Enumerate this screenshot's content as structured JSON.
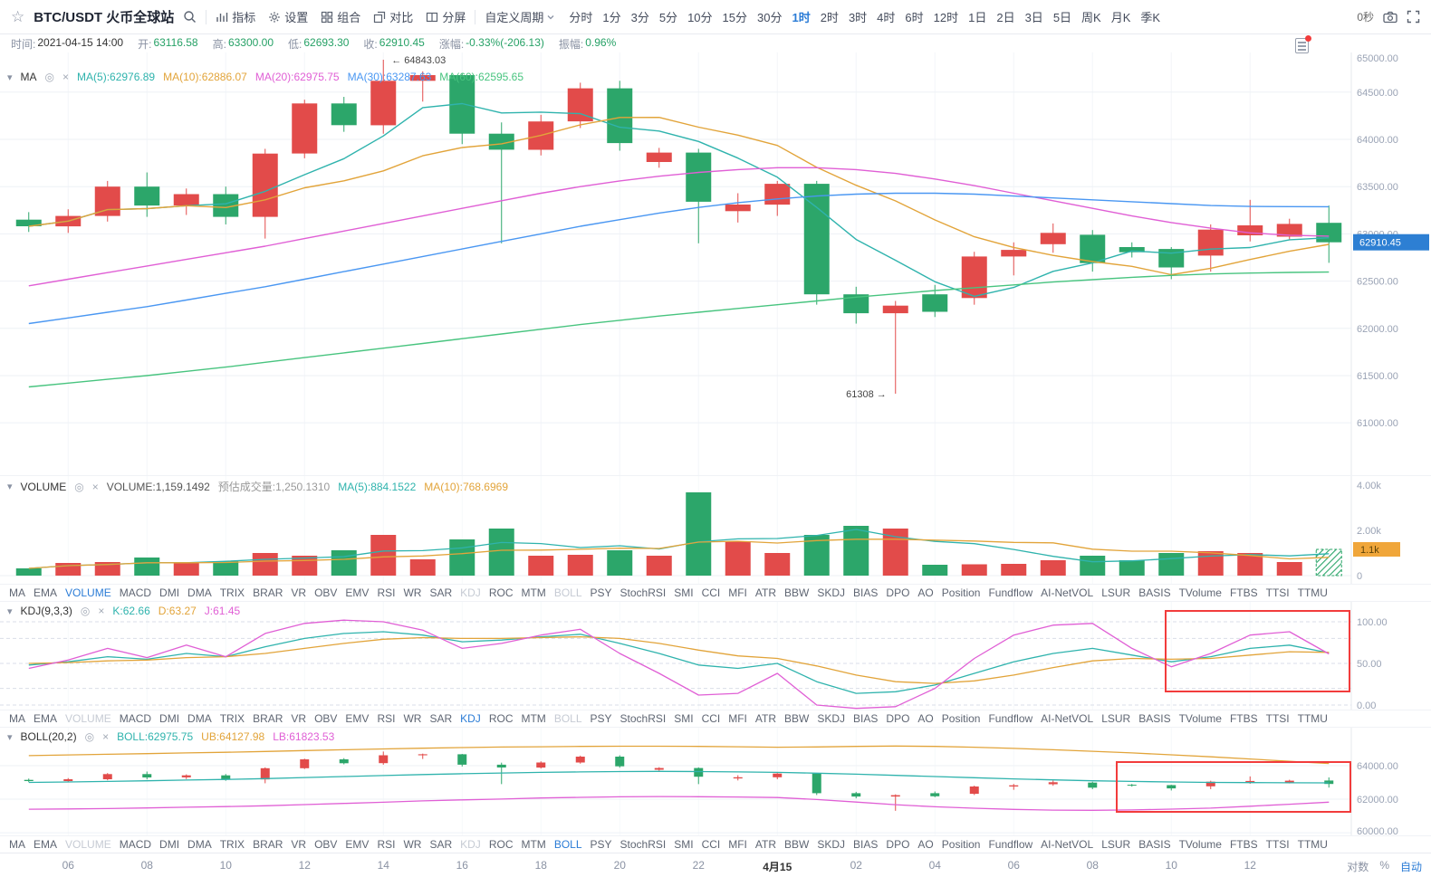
{
  "toolbar": {
    "symbol": "BTC/USDT 火币全球站",
    "tools": [
      {
        "label": "指标",
        "icon": "indicator-icon"
      },
      {
        "label": "设置",
        "icon": "gear-icon"
      },
      {
        "label": "组合",
        "icon": "layout-icon"
      },
      {
        "label": "对比",
        "icon": "compare-icon"
      },
      {
        "label": "分屏",
        "icon": "split-icon"
      }
    ],
    "custom_period_label": "自定义周期",
    "timeframes": [
      "分时",
      "1分",
      "3分",
      "5分",
      "10分",
      "15分",
      "30分",
      "1时",
      "2时",
      "3时",
      "4时",
      "6时",
      "12时",
      "1日",
      "2日",
      "3日",
      "5日",
      "周K",
      "月K",
      "季K"
    ],
    "active_timeframe": "1时",
    "countdown": "0秒"
  },
  "info_bar": {
    "fields": [
      {
        "label": "时间:",
        "value": "2021-04-15 14:00",
        "color": "#333333"
      },
      {
        "label": "开:",
        "value": "63116.58",
        "color": "#26a166"
      },
      {
        "label": "高:",
        "value": "63300.00",
        "color": "#26a166"
      },
      {
        "label": "低:",
        "value": "62693.30",
        "color": "#26a166"
      },
      {
        "label": "收:",
        "value": "62910.45",
        "color": "#26a166"
      },
      {
        "label": "涨幅:",
        "value": "-0.33%(-206.13)",
        "color": "#26a166"
      },
      {
        "label": "振幅:",
        "value": "0.96%",
        "color": "#26a166"
      }
    ]
  },
  "legends": {
    "ma": {
      "name": "MA",
      "items": [
        {
          "text": "MA(5):62976.89",
          "color": "#2fb3ad"
        },
        {
          "text": "MA(10):62886.07",
          "color": "#e2a43a"
        },
        {
          "text": "MA(20):62975.75",
          "color": "#e05fd5"
        },
        {
          "text": "MA(30):63287.63",
          "color": "#4a97f2"
        },
        {
          "text": "MA(60):62595.65",
          "color": "#48c47f"
        }
      ]
    },
    "volume": {
      "name": "VOLUME",
      "items": [
        {
          "text": "VOLUME:1,159.1492",
          "color": "#555555"
        },
        {
          "text": "预估成交量:1,250.1310",
          "color": "#999999"
        },
        {
          "text": "MA(5):884.1522",
          "color": "#2fb3ad"
        },
        {
          "text": "MA(10):768.6969",
          "color": "#e2a43a"
        }
      ]
    },
    "kdj": {
      "name": "KDJ(9,3,3)",
      "items": [
        {
          "text": "K:62.66",
          "color": "#2fb3ad"
        },
        {
          "text": "D:63.27",
          "color": "#e2a43a"
        },
        {
          "text": "J:61.45",
          "color": "#e05fd5"
        }
      ]
    },
    "boll": {
      "name": "BOLL(20,2)",
      "items": [
        {
          "text": "BOLL:62975.75",
          "color": "#2fb3ad"
        },
        {
          "text": "UB:64127.98",
          "color": "#e2a43a"
        },
        {
          "text": "LB:61823.53",
          "color": "#e05fd5"
        }
      ]
    }
  },
  "indicator_tabs": {
    "items": [
      "MA",
      "EMA",
      "VOLUME",
      "MACD",
      "DMI",
      "DMA",
      "TRIX",
      "BRAR",
      "VR",
      "OBV",
      "EMV",
      "RSI",
      "WR",
      "SAR",
      "KDJ",
      "ROC",
      "MTM",
      "BOLL",
      "PSY",
      "StochRSI",
      "SMI",
      "CCI",
      "MFI",
      "ATR",
      "BBW",
      "SKDJ",
      "BIAS",
      "DPO",
      "AO",
      "Position",
      "Fundflow",
      "AI-NetVOL",
      "LSUR",
      "BASIS",
      "TVolume",
      "FTBS",
      "TTSI",
      "TTMU"
    ],
    "rows": [
      {
        "active": "VOLUME",
        "dimmed": [
          "KDJ",
          "BOLL"
        ]
      },
      {
        "active": "KDJ",
        "dimmed": [
          "VOLUME",
          "BOLL"
        ]
      },
      {
        "active": "BOLL",
        "dimmed": [
          "VOLUME",
          "KDJ"
        ]
      }
    ]
  },
  "time_axis": {
    "labels": [
      {
        "text": "06",
        "index": 1
      },
      {
        "text": "08",
        "index": 3
      },
      {
        "text": "10",
        "index": 5
      },
      {
        "text": "12",
        "index": 7
      },
      {
        "text": "14",
        "index": 9
      },
      {
        "text": "16",
        "index": 11
      },
      {
        "text": "18",
        "index": 13
      },
      {
        "text": "20",
        "index": 15
      },
      {
        "text": "22",
        "index": 17
      },
      {
        "text": "4月15",
        "index": 19,
        "bold": true
      },
      {
        "text": "02",
        "index": 21
      },
      {
        "text": "04",
        "index": 23
      },
      {
        "text": "06",
        "index": 25
      },
      {
        "text": "08",
        "index": 27
      },
      {
        "text": "10",
        "index": 29
      },
      {
        "text": "12",
        "index": 31
      }
    ],
    "right_options": [
      {
        "text": "对数",
        "active": false
      },
      {
        "text": "%",
        "active": false
      },
      {
        "text": "自动",
        "active": true
      }
    ]
  },
  "axes": {
    "price_ticks": [
      65000,
      64500,
      64000,
      63500,
      63000,
      62500,
      62000,
      61500,
      61000
    ],
    "price_tag": {
      "text": "62910.45",
      "color": "#2d7fd3"
    },
    "volume_ticks": [
      {
        "label": "4.00k",
        "value": 4000
      },
      {
        "label": "2.00k",
        "value": 2000
      },
      {
        "label": "0",
        "value": 0
      }
    ],
    "volume_tag": {
      "text": "1.1k",
      "color": "#f0a63a"
    },
    "kdj_ticks": [
      {
        "label": "100.00",
        "value": 100
      },
      {
        "label": "50.00",
        "value": 50
      },
      {
        "label": "0.00",
        "value": 0
      }
    ],
    "boll_ticks": [
      {
        "label": "64000.00",
        "value": 64000
      },
      {
        "label": "62000.00",
        "value": 62000
      },
      {
        "label": "60000.00",
        "value": 60000
      }
    ]
  },
  "annotations": {
    "high_label": "← 64843.03",
    "low_label": "61308 →",
    "high_value": 64843.03,
    "low_value": 61308
  },
  "colors": {
    "up": "#e24b4a",
    "down": "#2ca66a",
    "ma5": "#2fb3ad",
    "ma10": "#e2a43a",
    "ma20": "#e05fd5",
    "ma30": "#4a97f2",
    "ma60": "#48c47f",
    "accent": "#2b7cd6",
    "grid": "#eef1f6",
    "axis_text": "#9aa3b5",
    "highlight": "#f23c3c"
  },
  "chart_data": {
    "type": "candlestick",
    "interval": "1h",
    "start_time": "2021-04-14 05:00",
    "end_time": "2021-04-15 14:00",
    "price_range": [
      61000,
      65000
    ],
    "candles": [
      [
        63150,
        63230,
        63020,
        63080
      ],
      [
        63080,
        63260,
        63010,
        63190
      ],
      [
        63190,
        63560,
        63130,
        63500
      ],
      [
        63500,
        63650,
        63180,
        63300
      ],
      [
        63300,
        63480,
        63200,
        63420
      ],
      [
        63420,
        63500,
        63100,
        63180
      ],
      [
        63180,
        63900,
        62950,
        63850
      ],
      [
        63850,
        64420,
        63800,
        64380
      ],
      [
        64380,
        64450,
        64080,
        64150
      ],
      [
        64150,
        64843.03,
        64060,
        64620
      ],
      [
        64620,
        64720,
        64400,
        64680
      ],
      [
        64680,
        64700,
        63950,
        64060
      ],
      [
        64060,
        64180,
        62900,
        63890
      ],
      [
        63890,
        64260,
        63830,
        64190
      ],
      [
        64190,
        64600,
        64120,
        64540
      ],
      [
        64540,
        64620,
        63880,
        63960
      ],
      [
        63760,
        63910,
        63700,
        63860
      ],
      [
        63860,
        63900,
        62900,
        63340
      ],
      [
        63240,
        63430,
        63120,
        63310
      ],
      [
        63310,
        63560,
        63190,
        63530
      ],
      [
        63530,
        63560,
        62250,
        62360
      ],
      [
        62360,
        62440,
        62050,
        62160
      ],
      [
        62160,
        62290,
        61308,
        62240
      ],
      [
        62360,
        62460,
        62120,
        62175
      ],
      [
        62320,
        62810,
        62250,
        62760
      ],
      [
        62760,
        62910,
        62560,
        62830
      ],
      [
        62890,
        63110,
        62800,
        63010
      ],
      [
        62990,
        63040,
        62600,
        62690
      ],
      [
        62860,
        62910,
        62750,
        62805
      ],
      [
        62840,
        62860,
        62520,
        62645
      ],
      [
        62770,
        63100,
        62600,
        63045
      ],
      [
        62985,
        63360,
        62920,
        63090
      ],
      [
        62970,
        63160,
        62940,
        63105
      ],
      [
        63116.58,
        63300,
        62693.3,
        62910.45
      ]
    ],
    "volumes": [
      320,
      560,
      600,
      800,
      560,
      640,
      1000,
      880,
      1120,
      1800,
      720,
      1600,
      2080,
      880,
      920,
      1120,
      880,
      3680,
      1520,
      1000,
      1800,
      2200,
      2080,
      480,
      500,
      520,
      680,
      880,
      680,
      1000,
      1080,
      1000,
      600,
      1159.1492
    ],
    "ma20": [
      62450,
      62520,
      62590,
      62660,
      62730,
      62800,
      62870,
      62950,
      63030,
      63110,
      63190,
      63270,
      63350,
      63430,
      63500,
      63560,
      63610,
      63650,
      63680,
      63700,
      63700,
      63680,
      63640,
      63580,
      63510,
      63430,
      63350,
      63270,
      63190,
      63120,
      63060,
      63010,
      62985,
      62975.75
    ],
    "ma30": [
      62050,
      62110,
      62170,
      62230,
      62300,
      62370,
      62440,
      62520,
      62600,
      62680,
      62760,
      62840,
      62920,
      63000,
      63080,
      63150,
      63220,
      63280,
      63330,
      63370,
      63400,
      63420,
      63430,
      63430,
      63420,
      63400,
      63380,
      63360,
      63340,
      63320,
      63300,
      63290,
      63288,
      63287.63
    ],
    "ma60": [
      61380,
      61420,
      61460,
      61500,
      61545,
      61590,
      61640,
      61690,
      61740,
      61790,
      61840,
      61890,
      61940,
      61990,
      62040,
      62085,
      62130,
      62170,
      62210,
      62250,
      62290,
      62330,
      62365,
      62400,
      62430,
      62460,
      62490,
      62515,
      62540,
      62560,
      62575,
      62585,
      62592,
      62595.65
    ],
    "kdj": {
      "k": [
        48,
        52,
        58,
        55,
        62,
        58,
        70,
        80,
        86,
        88,
        84,
        76,
        78,
        82,
        85,
        74,
        62,
        48,
        44,
        50,
        28,
        14,
        16,
        24,
        38,
        52,
        62,
        68,
        60,
        52,
        58,
        68,
        72,
        62.66
      ],
      "d": [
        50,
        51,
        53,
        54,
        57,
        58,
        62,
        68,
        74,
        79,
        81,
        80,
        80,
        81,
        82,
        80,
        74,
        66,
        59,
        56,
        47,
        36,
        28,
        26,
        29,
        36,
        45,
        53,
        56,
        55,
        56,
        60,
        64,
        63.27
      ],
      "j": [
        44,
        54,
        68,
        57,
        72,
        58,
        86,
        98,
        102,
        100,
        90,
        68,
        74,
        84,
        91,
        62,
        38,
        12,
        14,
        38,
        0,
        -4,
        -2,
        20,
        56,
        84,
        96,
        98,
        68,
        46,
        62,
        84,
        88,
        61.45
      ]
    },
    "boll": {
      "ub": [
        64600,
        64640,
        64680,
        64720,
        64760,
        64800,
        64850,
        64900,
        64950,
        65000,
        65040,
        65080,
        65110,
        65130,
        65150,
        65160,
        65160,
        65150,
        65130,
        65100,
        65120,
        65150,
        65170,
        65150,
        65100,
        65030,
        64950,
        64860,
        64760,
        64650,
        64530,
        64400,
        64260,
        64127.98
      ],
      "mid": [
        63000,
        63030,
        63060,
        63100,
        63140,
        63180,
        63230,
        63290,
        63350,
        63410,
        63470,
        63520,
        63560,
        63600,
        63630,
        63650,
        63660,
        63650,
        63630,
        63600,
        63550,
        63490,
        63420,
        63350,
        63280,
        63210,
        63150,
        63100,
        63060,
        63030,
        63000,
        62990,
        62980,
        62975.75
      ],
      "lb": [
        61400,
        61420,
        61440,
        61480,
        61520,
        61560,
        61610,
        61680,
        61750,
        61820,
        61900,
        61960,
        62010,
        62070,
        62110,
        62140,
        62160,
        62150,
        62130,
        62100,
        61980,
        61830,
        61670,
        61550,
        61460,
        61390,
        61350,
        61340,
        61360,
        61410,
        61470,
        61580,
        61700,
        61823.53
      ]
    }
  }
}
